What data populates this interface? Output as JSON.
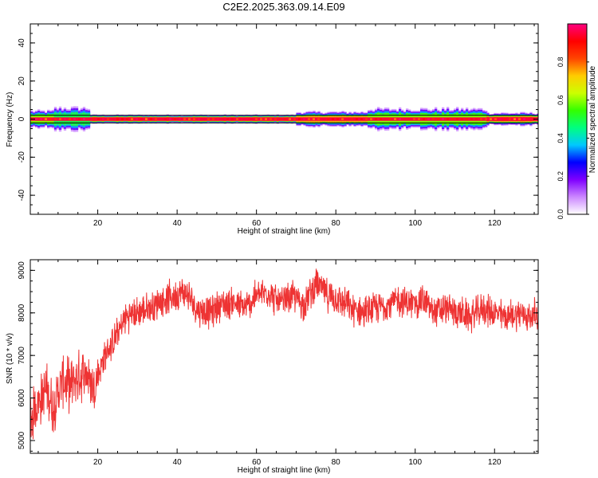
{
  "title": "C2E2.2025.363.09.14.E09",
  "chart_data": [
    {
      "type": "heatmap",
      "title": "C2E2.2025.363.09.14.E09",
      "xlabel": "Height of straight line (km)",
      "ylabel": "Frequency (Hz)",
      "xlim": [
        3,
        131
      ],
      "ylim": [
        -50,
        50
      ],
      "x_ticks": [
        20,
        40,
        60,
        80,
        100,
        120
      ],
      "y_ticks": [
        -40,
        -20,
        0,
        20,
        40
      ],
      "colorbar": {
        "label": "Normalized spectral amplitude",
        "range": [
          0,
          1
        ],
        "ticks": [
          "0.0",
          "0.2",
          "0.4",
          "0.6",
          "0.8"
        ],
        "colors": [
          "#ffffff",
          "#cc88ff",
          "#7f00ff",
          "#0000ff",
          "#00c8ff",
          "#00ff80",
          "#33ff00",
          "#ccff00",
          "#ffcc00",
          "#ff4400",
          "#ff0000",
          "#ff0080"
        ]
      },
      "bands": [
        {
          "x0": 3,
          "x1": 9,
          "halfwidth_hz": 3.5,
          "peak": 0.55
        },
        {
          "x0": 9,
          "x1": 18,
          "halfwidth_hz": 5,
          "peak": 0.45
        },
        {
          "x0": 18,
          "x1": 70,
          "halfwidth_hz": 1.5,
          "peak": 0.95
        },
        {
          "x0": 70,
          "x1": 88,
          "halfwidth_hz": 3,
          "peak": 0.7
        },
        {
          "x0": 88,
          "x1": 118,
          "halfwidth_hz": 4.5,
          "peak": 0.55
        },
        {
          "x0": 118,
          "x1": 131,
          "halfwidth_hz": 2.5,
          "peak": 0.8
        }
      ],
      "grid": false
    },
    {
      "type": "line",
      "xlabel": "Height of straight line (km)",
      "ylabel": "SNR (10 * v/v)",
      "xlim": [
        3,
        131
      ],
      "ylim": [
        4700,
        9250
      ],
      "x_ticks": [
        20,
        40,
        60,
        80,
        100,
        120
      ],
      "y_ticks": [
        5000,
        6000,
        7000,
        8000,
        9000
      ],
      "line_color": "#ee3333",
      "x": [
        3,
        5,
        7,
        9,
        11,
        13,
        15,
        17,
        19,
        21,
        23,
        25,
        27,
        30,
        33,
        36,
        39,
        42,
        45,
        48,
        51,
        54,
        57,
        60,
        63,
        66,
        69,
        72,
        75,
        78,
        81,
        84,
        87,
        90,
        93,
        96,
        99,
        102,
        105,
        108,
        111,
        114,
        117,
        120,
        123,
        126,
        129,
        131
      ],
      "y": [
        5500,
        5900,
        6200,
        5800,
        6400,
        6300,
        6500,
        6600,
        6200,
        6800,
        7200,
        7500,
        7900,
        8000,
        8100,
        8300,
        8400,
        8500,
        8100,
        8000,
        8200,
        8250,
        8100,
        8400,
        8500,
        8200,
        8400,
        8200,
        8700,
        8400,
        8300,
        8100,
        8000,
        8100,
        8200,
        8300,
        8200,
        8300,
        8000,
        8100,
        8000,
        7900,
        8100,
        8000,
        7900,
        8000,
        7900,
        8000
      ],
      "noise": 450,
      "grid": false
    }
  ]
}
